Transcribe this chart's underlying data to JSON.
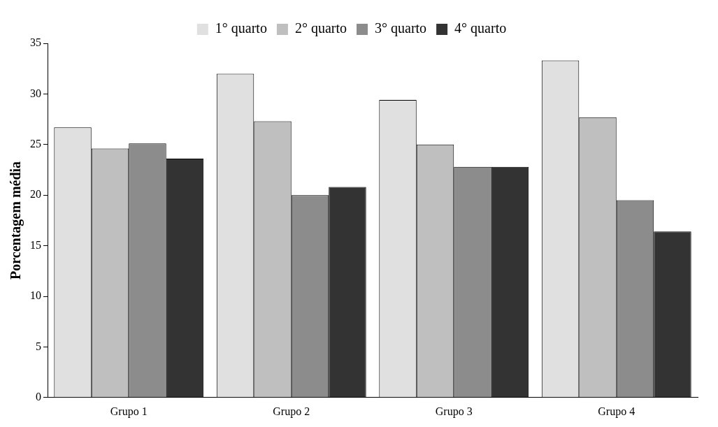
{
  "chart_data": {
    "type": "bar",
    "ylabel": "Porcentagem média",
    "categories": [
      "Grupo 1",
      "Grupo 2",
      "Grupo 3",
      "Grupo 4"
    ],
    "series": [
      {
        "name": "1° quarto",
        "color": "#e0e0e0",
        "values": [
          26.7,
          32.0,
          29.4,
          33.3
        ]
      },
      {
        "name": "2° quarto",
        "color": "#bfbfbf",
        "values": [
          24.6,
          27.3,
          25.0,
          27.7
        ]
      },
      {
        "name": "3° quarto",
        "color": "#8c8c8c",
        "values": [
          25.1,
          20.0,
          22.8,
          19.5
        ]
      },
      {
        "name": "4° quarto",
        "color": "#333333",
        "values": [
          23.6,
          20.8,
          22.8,
          16.4
        ]
      }
    ],
    "ylim": [
      0,
      35
    ],
    "yticks": [
      0,
      5,
      10,
      15,
      20,
      25,
      30,
      35
    ],
    "grid": false,
    "legend": "top"
  }
}
